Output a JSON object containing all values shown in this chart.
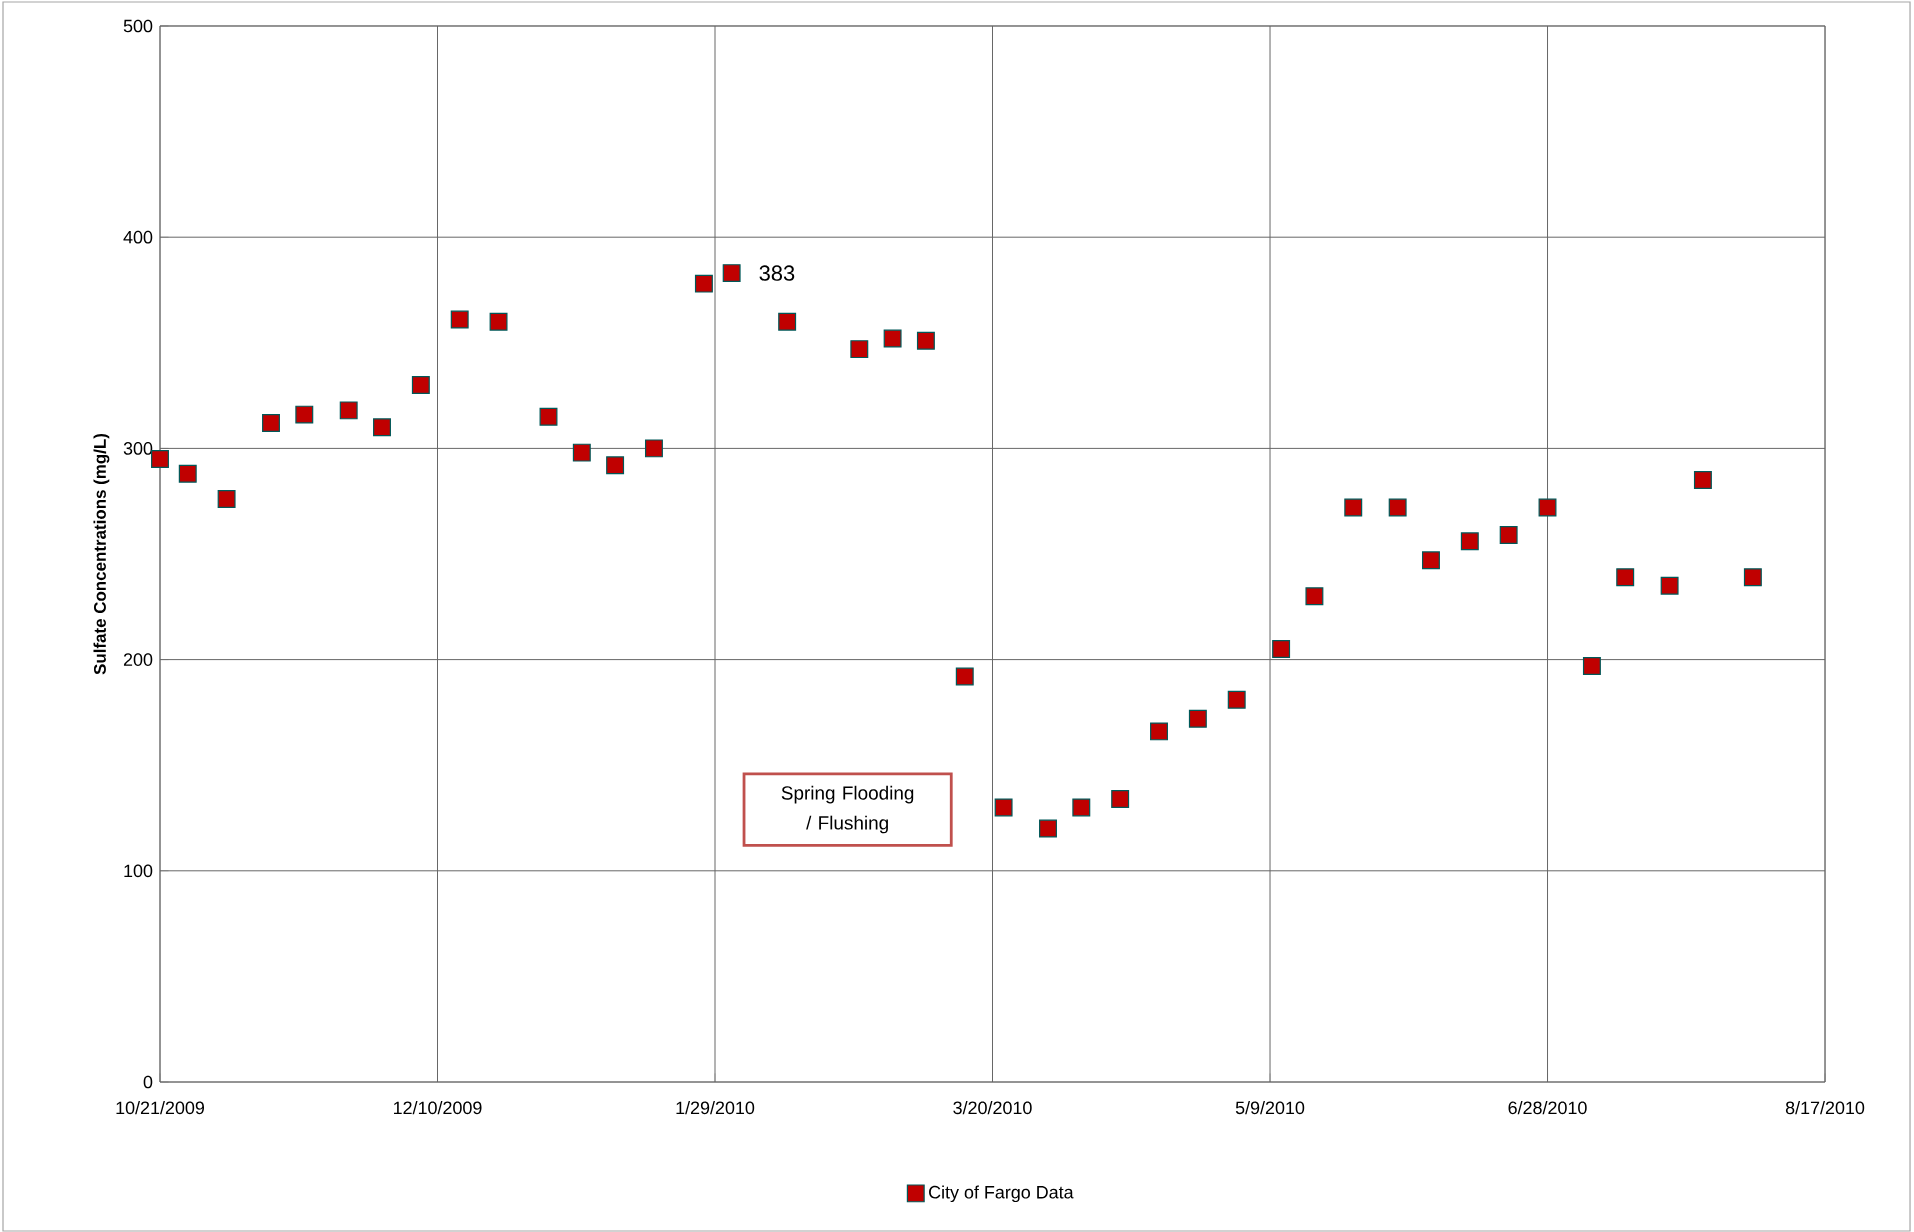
{
  "chart_data": {
    "type": "scatter",
    "ylabel": "Sulfate Concentrations (mg/L)",
    "x": [
      "2009-10-21",
      "2009-10-26",
      "2009-11-02",
      "2009-11-10",
      "2009-11-16",
      "2009-11-24",
      "2009-11-30",
      "2009-12-07",
      "2009-12-14",
      "2009-12-21",
      "2009-12-30",
      "2010-01-05",
      "2010-01-11",
      "2010-01-18",
      "2010-01-27",
      "2010-02-01",
      "2010-02-11",
      "2010-02-24",
      "2010-03-02",
      "2010-03-08",
      "2010-03-15",
      "2010-03-22",
      "2010-03-30",
      "2010-04-05",
      "2010-04-12",
      "2010-04-19",
      "2010-04-26",
      "2010-05-03",
      "2010-05-11",
      "2010-05-17",
      "2010-05-24",
      "2010-06-01",
      "2010-06-07",
      "2010-06-14",
      "2010-06-21",
      "2010-06-28",
      "2010-07-06",
      "2010-07-12",
      "2010-07-20",
      "2010-07-26",
      "2010-08-04"
    ],
    "series": [
      {
        "name": "City of Fargo Data",
        "color": "#c00000",
        "values": [
          295,
          288,
          276,
          312,
          316,
          318,
          310,
          330,
          361,
          360,
          315,
          298,
          292,
          300,
          378,
          383,
          360,
          347,
          352,
          351,
          192,
          130,
          120,
          130,
          134,
          166,
          172,
          181,
          205,
          230,
          272,
          272,
          247,
          256,
          259,
          272,
          197,
          239,
          235,
          285,
          239
        ]
      }
    ],
    "xlim": [
      "2009-10-21",
      "2010-08-17"
    ],
    "xticks": [
      {
        "value": "2009-10-21",
        "label": "10/21/2009"
      },
      {
        "value": "2009-12-10",
        "label": "12/10/2009"
      },
      {
        "value": "2010-01-29",
        "label": "1/29/2010"
      },
      {
        "value": "2010-03-20",
        "label": "3/20/2010"
      },
      {
        "value": "2010-05-09",
        "label": "5/9/2010"
      },
      {
        "value": "2010-06-28",
        "label": "6/28/2010"
      },
      {
        "value": "2010-08-17",
        "label": "8/17/2010"
      }
    ],
    "ylim": [
      0,
      500
    ],
    "yticks": [
      0,
      100,
      200,
      300,
      400,
      500
    ],
    "annotations": [
      {
        "text": "383",
        "x": "2010-02-01",
        "y": 383
      },
      "Spring Flooding / Flushing"
    ],
    "grid": true,
    "legend": "bottom",
    "marker": "square"
  }
}
